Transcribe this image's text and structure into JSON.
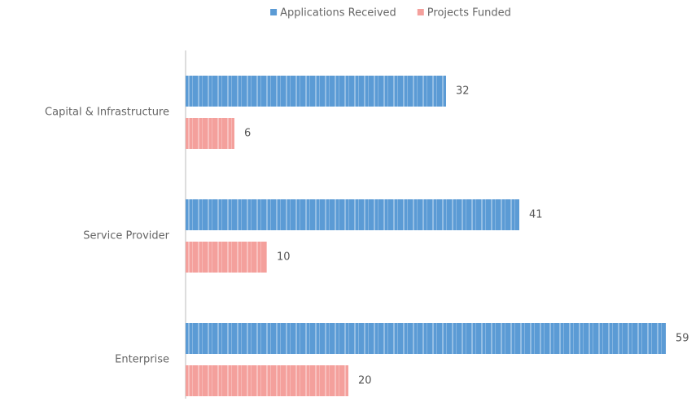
{
  "chart_data": {
    "type": "bar",
    "orientation": "horizontal",
    "categories": [
      "Capital & Infrastructure",
      "Service Provider",
      "Enterprise"
    ],
    "series": [
      {
        "name": "Applications Received",
        "color": "#5b9bd5",
        "values": [
          32,
          41,
          59
        ]
      },
      {
        "name": "Projects Funded",
        "color": "#f4a09c",
        "values": [
          6,
          10,
          20
        ]
      }
    ],
    "legend": "top"
  }
}
